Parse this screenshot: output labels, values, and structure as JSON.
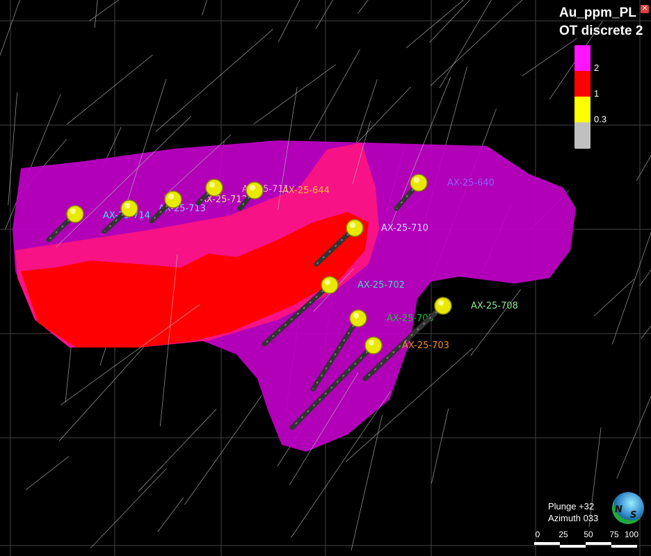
{
  "legend": {
    "title_line1": "Au_ppm_PL",
    "title_line2": "OT discrete 2",
    "close_icon": "close-icon",
    "bins": [
      {
        "color": "#ff14ff",
        "label": "2"
      },
      {
        "color": "#ff0000",
        "label": "1"
      },
      {
        "color": "#ffff00",
        "label": "0.3"
      },
      {
        "color": "#c0c0c0",
        "label": ""
      }
    ]
  },
  "orientation": {
    "plunge": "Plunge +32",
    "azimuth": "Azimuth 033"
  },
  "compass": {
    "n": "N",
    "s": "S"
  },
  "scale_bar": {
    "ticks": [
      "0",
      "25",
      "50",
      "75",
      "100"
    ]
  },
  "drillholes": [
    {
      "name": "AX-25-714",
      "color": "#40e0f0"
    },
    {
      "name": "AX-25-713",
      "color": "#a0b8ff"
    },
    {
      "name": "AX-25-712",
      "color": "#e8d8a0"
    },
    {
      "name": "AX-25-711",
      "color": "#f0a0d8"
    },
    {
      "name": "AX-25-644",
      "color": "#ffc040"
    },
    {
      "name": "AX-25-640",
      "color": "#9060ff"
    },
    {
      "name": "AX-25-710",
      "color": "#d8d0ff"
    },
    {
      "name": "AX-25-702",
      "color": "#40d8c0"
    },
    {
      "name": "AX-25-705",
      "color": "#20c040"
    },
    {
      "name": "AX-25-708",
      "color": "#90e890"
    },
    {
      "name": "AX-25-703",
      "color": "#f09020"
    }
  ],
  "shell_colors": {
    "low": "#c000c8",
    "mid": "#ff1480",
    "high": "#ff0000"
  }
}
